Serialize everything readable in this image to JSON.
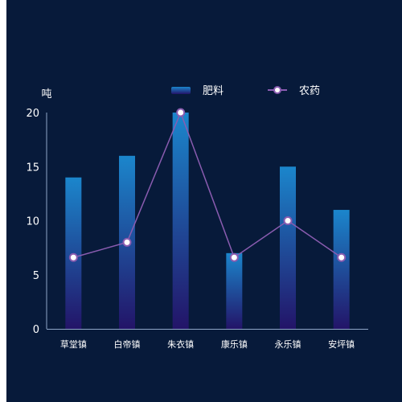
{
  "chart_data": {
    "type": "bar",
    "categories": [
      "草堂镇",
      "白帝镇",
      "朱衣镇",
      "康乐镇",
      "永乐镇",
      "安坪镇"
    ],
    "series": [
      {
        "name": "肥料",
        "type": "bar",
        "values": [
          14,
          16,
          20,
          7,
          15,
          11
        ]
      },
      {
        "name": "农药",
        "type": "line",
        "values": [
          6.6,
          8,
          20,
          6.6,
          10,
          6.6
        ]
      }
    ],
    "ylabel": "吨",
    "ylim": [
      0,
      20
    ],
    "yticks": [
      0,
      5,
      10,
      15,
      20
    ],
    "legend_position": "top-right",
    "colors": {
      "bar_top": "#1b86cc",
      "bar_bottom": "#231468",
      "line": "#8a5cb0",
      "marker_fill": "#ffffff",
      "marker_stroke": "#8a5cb0",
      "axis": "#8fa6c8",
      "text": "#ffffff",
      "background": "#071a3a"
    }
  }
}
